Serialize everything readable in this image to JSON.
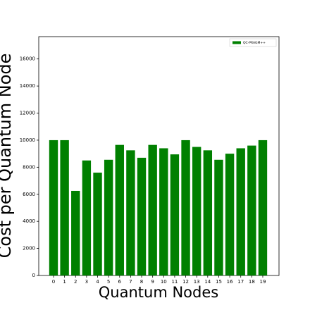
{
  "chart_data": {
    "type": "bar",
    "x_label": "Quantum Nodes",
    "y_label": "Cost per Quantum Node",
    "categories": [
      "0",
      "1",
      "2",
      "3",
      "4",
      "5",
      "6",
      "7",
      "8",
      "9",
      "10",
      "11",
      "12",
      "13",
      "14",
      "15",
      "16",
      "17",
      "18",
      "19"
    ],
    "series": [
      {
        "name": "QC-PRAGM++",
        "color": "#008000",
        "values": [
          10000,
          10000,
          6250,
          8500,
          7600,
          8550,
          9650,
          9250,
          8700,
          9650,
          9400,
          8950,
          10000,
          9500,
          9250,
          8550,
          9000,
          9400,
          9600,
          10000
        ]
      }
    ],
    "ylim": [
      0,
      17650
    ],
    "yticks": [
      0,
      2000,
      4000,
      6000,
      8000,
      10000,
      12000,
      14000,
      16000
    ],
    "legend": "upper right"
  }
}
